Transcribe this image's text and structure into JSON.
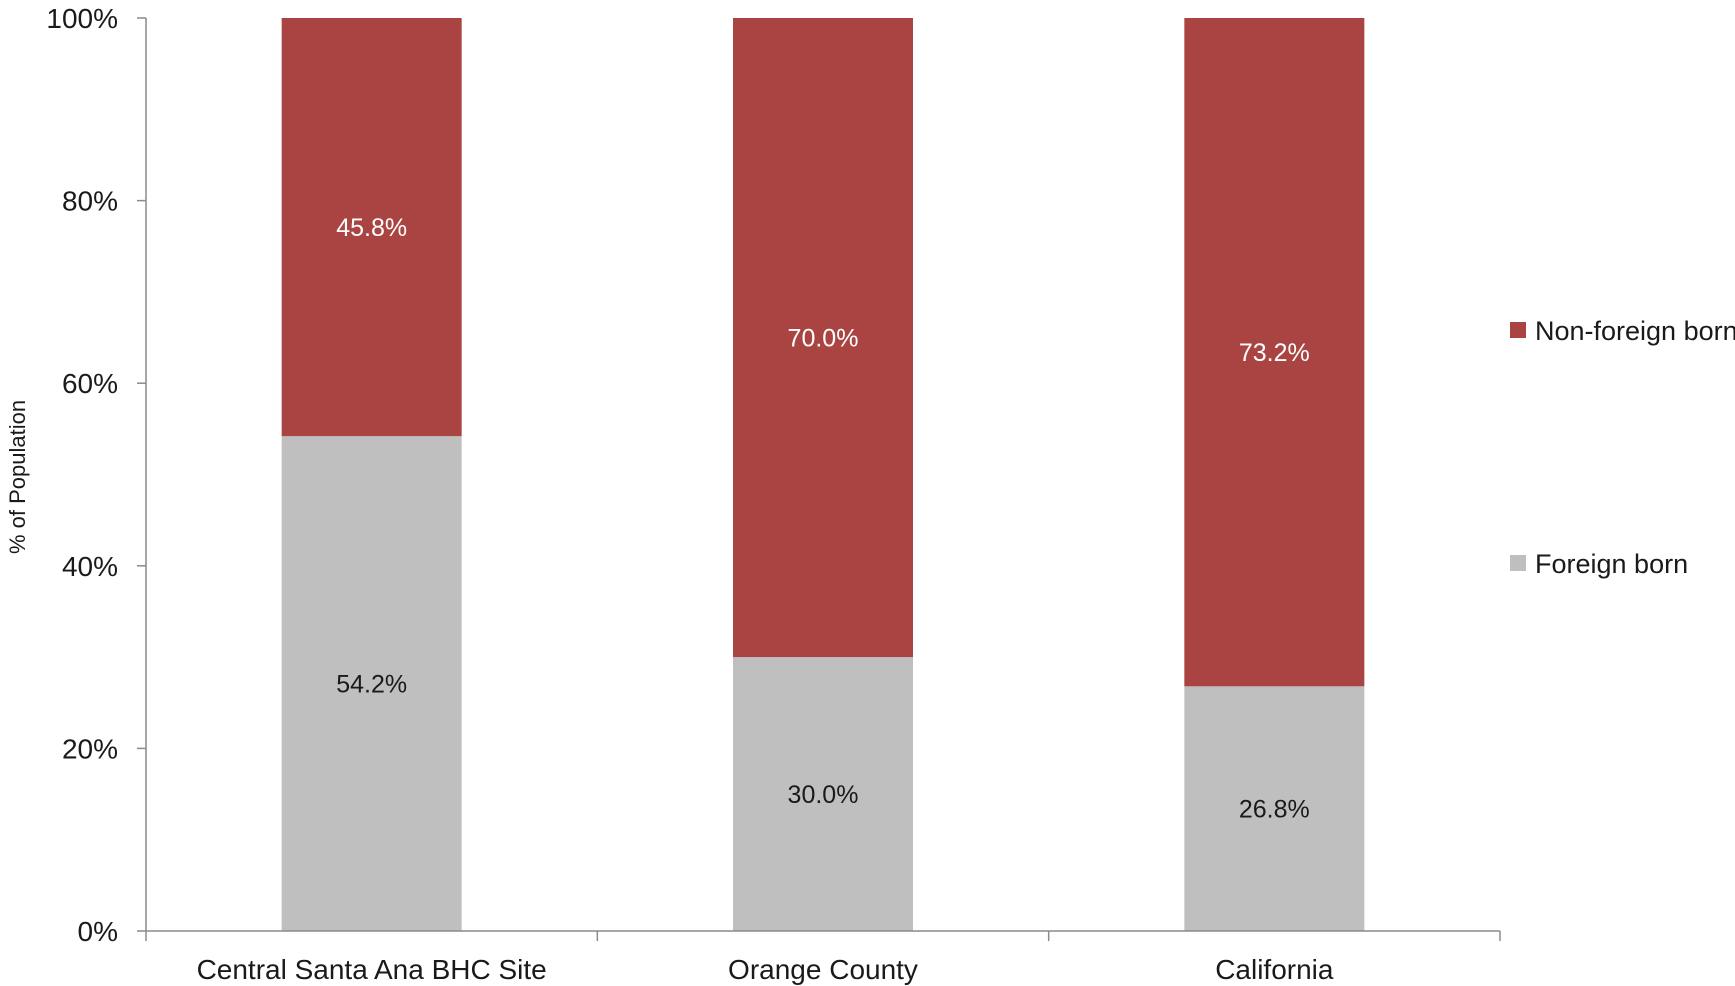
{
  "chart_data": {
    "type": "bar",
    "stacked": true,
    "title": "",
    "xlabel": "",
    "ylabel": "% of Population",
    "ylim": [
      0,
      100
    ],
    "yticks": [
      "0%",
      "20%",
      "40%",
      "60%",
      "80%",
      "100%"
    ],
    "categories": [
      "Central Santa Ana BHC Site",
      "Orange County",
      "California"
    ],
    "series": [
      {
        "name": "Foreign born",
        "values": [
          54.2,
          30.0,
          26.8
        ],
        "labels": [
          "54.2%",
          "30.0%",
          "26.8%"
        ],
        "color": "#bfbfbf",
        "label_color": "#1a1a1a"
      },
      {
        "name": "Non-foreign born",
        "values": [
          45.8,
          70.0,
          73.2
        ],
        "labels": [
          "45.8%",
          "70.0%",
          "73.2%"
        ],
        "color": "#a94442",
        "label_color": "#ffffff"
      }
    ],
    "legend": {
      "position": "right",
      "order": [
        "Non-foreign born",
        "Foreign born"
      ]
    },
    "grid": false
  }
}
